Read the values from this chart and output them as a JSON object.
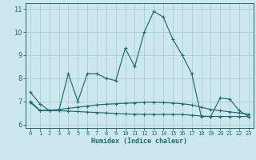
{
  "xlabel": "Humidex (Indice chaleur)",
  "background_color": "#cce8ee",
  "grid_color": "#aacdd4",
  "line_color": "#1e6b6b",
  "x_values": [
    0,
    1,
    2,
    3,
    4,
    5,
    6,
    7,
    8,
    9,
    10,
    11,
    12,
    13,
    14,
    15,
    16,
    17,
    18,
    19,
    20,
    21,
    22,
    23
  ],
  "line1": [
    7.4,
    6.9,
    6.6,
    6.6,
    8.2,
    7.0,
    8.2,
    8.2,
    8.0,
    7.9,
    9.3,
    8.5,
    10.0,
    10.9,
    10.65,
    9.7,
    9.0,
    8.2,
    6.35,
    6.35,
    7.15,
    7.1,
    6.6,
    6.35
  ],
  "line2": [
    7.0,
    6.62,
    6.62,
    6.65,
    6.7,
    6.75,
    6.8,
    6.85,
    6.88,
    6.9,
    6.92,
    6.94,
    6.96,
    6.97,
    6.95,
    6.93,
    6.9,
    6.85,
    6.75,
    6.65,
    6.6,
    6.55,
    6.5,
    6.45
  ],
  "line3": [
    6.95,
    6.6,
    6.6,
    6.6,
    6.58,
    6.56,
    6.54,
    6.52,
    6.5,
    6.48,
    6.46,
    6.45,
    6.44,
    6.44,
    6.44,
    6.44,
    6.44,
    6.4,
    6.37,
    6.35,
    6.35,
    6.35,
    6.35,
    6.35
  ],
  "ylim": [
    5.85,
    11.25
  ],
  "yticks": [
    6,
    7,
    8,
    9,
    10,
    11
  ],
  "xlim": [
    -0.5,
    23.5
  ]
}
